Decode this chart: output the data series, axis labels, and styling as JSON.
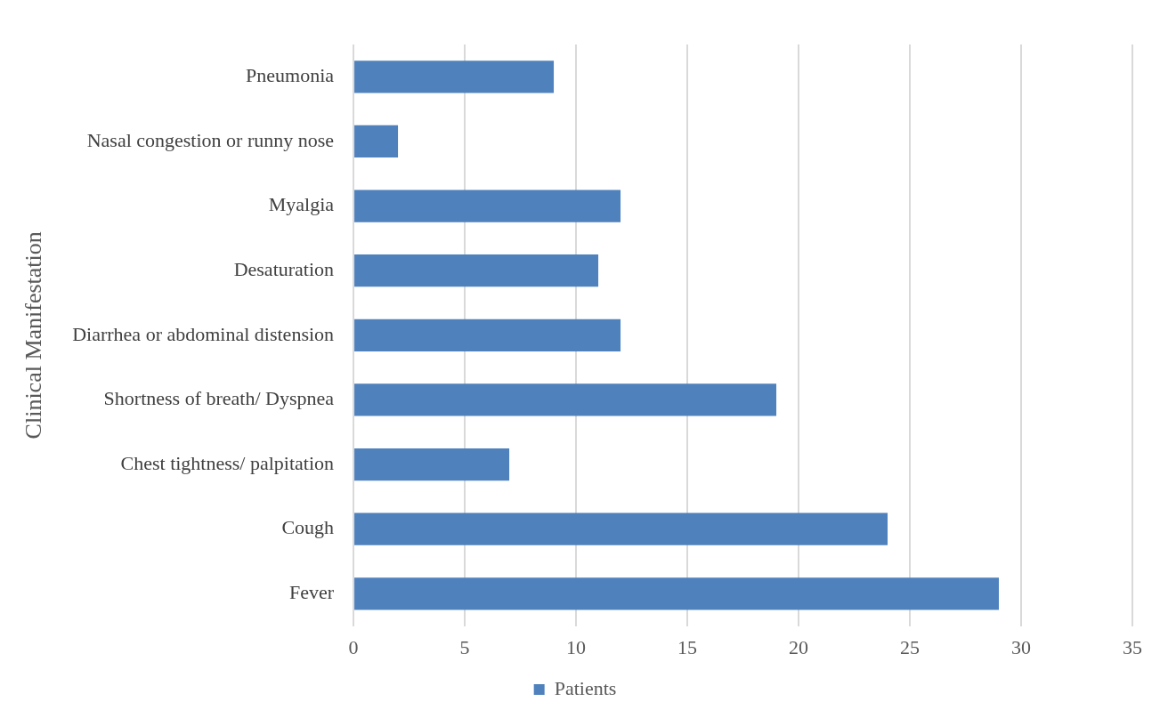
{
  "chart_data": {
    "type": "bar",
    "orientation": "horizontal",
    "ylabel": "Clinical Manifestation",
    "categories": [
      "Pneumonia",
      "Nasal congestion or runny nose",
      "Myalgia",
      "Desaturation",
      "Diarrhea or abdominal distension",
      "Shortness of breath/ Dyspnea",
      "Chest tightness/ palpitation",
      "Cough",
      "Fever"
    ],
    "series": [
      {
        "name": "Patients",
        "color": "#4f81bd",
        "values": [
          9,
          2,
          12,
          11,
          12,
          19,
          7,
          24,
          29
        ]
      }
    ],
    "xlim": [
      0,
      35
    ],
    "xticks": [
      0,
      5,
      10,
      15,
      20,
      25,
      30,
      35
    ],
    "grid": "x",
    "legend": "bottom"
  }
}
